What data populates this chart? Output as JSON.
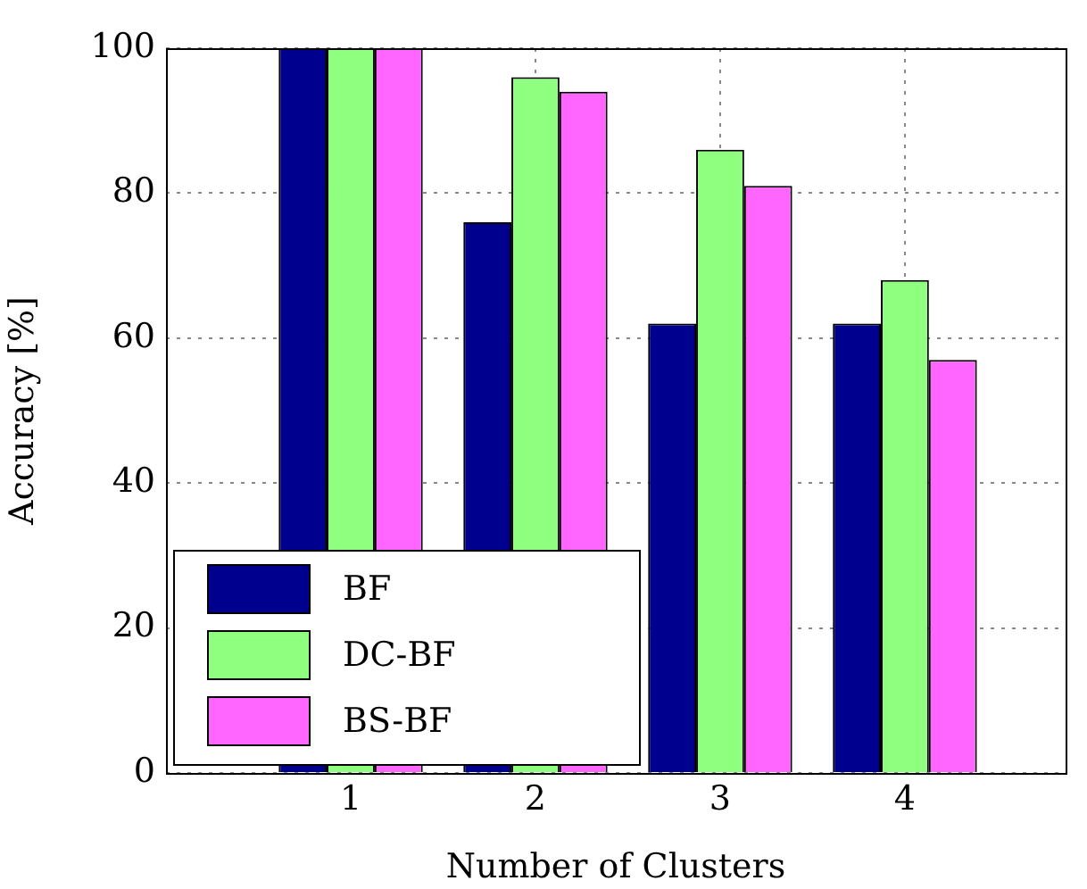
{
  "chart_data": {
    "type": "bar",
    "xlabel": "Number of Clusters",
    "ylabel": "Accuracy [%]",
    "x": [
      1,
      2,
      3,
      4
    ],
    "xlim": [
      0,
      4.87
    ],
    "xticks": [
      1,
      2,
      3,
      4
    ],
    "ylim": [
      0,
      100
    ],
    "yticks": [
      0,
      20,
      40,
      60,
      80,
      100
    ],
    "grid": true,
    "legend": "bottom left",
    "series": [
      {
        "name": "BF",
        "color": "#00008f",
        "values": [
          100,
          76,
          62,
          62
        ]
      },
      {
        "name": "DC-BF",
        "color": "#8fff7f",
        "values": [
          100,
          96,
          86,
          68
        ]
      },
      {
        "name": "BS-BF",
        "color": "#ff66ff",
        "values": [
          100,
          94,
          81,
          57
        ]
      }
    ]
  }
}
